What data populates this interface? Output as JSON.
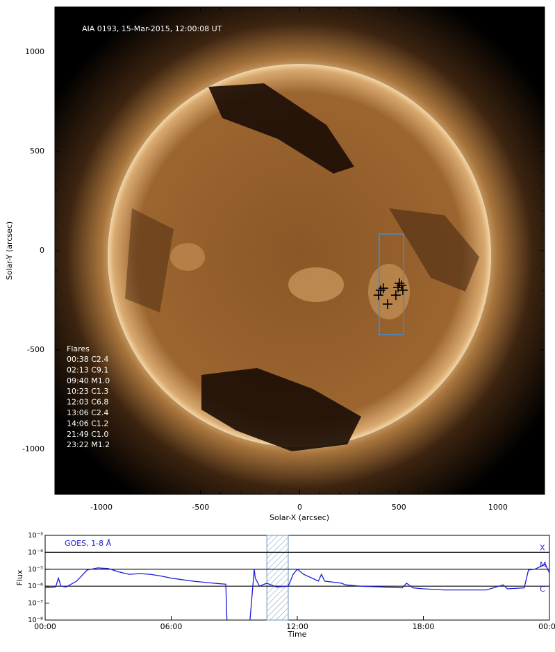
{
  "chart_data": [
    {
      "type": "scatter",
      "title": "AIA 0193, 15-Mar-2015, 12:00:08 UT",
      "xlabel": "Solar-X (arcsec)",
      "ylabel": "Solar-Y (arcsec)",
      "xlim": [
        -1235,
        1235
      ],
      "ylim": [
        -1227,
        1227
      ],
      "xticks": [
        -1000,
        -500,
        0,
        500,
        1000
      ],
      "yticks": [
        -1000,
        -500,
        0,
        500,
        1000
      ],
      "box": {
        "x": [
          401,
          524
        ],
        "y": [
          -423,
          84
        ],
        "color": "#3a8fd9"
      },
      "x": [
        397,
        422,
        443,
        485,
        496,
        513,
        520,
        503,
        408
      ],
      "y": [
        -224,
        -189,
        -269,
        -224,
        -185,
        -175,
        -199,
        -164,
        -199
      ],
      "color": "#000000",
      "flares_title": "Flares",
      "flares": [
        "00:38 C2.4",
        "02:13 C9.1",
        "09:40 M1.0",
        "10:23 C1.3",
        "12:03 C6.8",
        "13:06 C2.4",
        "14:06 C1.2",
        "21:49 C1.0",
        "23:22 M1.2"
      ]
    },
    {
      "type": "line",
      "xlabel": "Time",
      "ylabel": "Flux",
      "log_y": true,
      "xlim": [
        0,
        24
      ],
      "ylim": [
        1e-08,
        0.001
      ],
      "xticks": [
        {
          "value": 0,
          "label": "00:00"
        },
        {
          "value": 6,
          "label": "06:00"
        },
        {
          "value": 12,
          "label": "12:00"
        },
        {
          "value": 18,
          "label": "18:00"
        },
        {
          "value": 24,
          "label": "00:00"
        }
      ],
      "yticks": [
        {
          "value": 1e-08,
          "label": "10⁻⁸"
        },
        {
          "value": 1e-07,
          "label": "10⁻⁷"
        },
        {
          "value": 1e-06,
          "label": "10⁻⁶"
        },
        {
          "value": 1e-05,
          "label": "10⁻⁵"
        },
        {
          "value": 0.0001,
          "label": "10⁻⁴"
        },
        {
          "value": 0.001,
          "label": "10⁻³"
        }
      ],
      "class_levels": {
        "labels": [
          "X",
          "M",
          "C"
        ],
        "values": [
          0.0001,
          1e-05,
          1e-06
        ]
      },
      "shaded": [
        10.55,
        11.57
      ],
      "x": [
        0,
        0.5,
        0.63,
        0.75,
        1.0,
        1.5,
        2.0,
        2.5,
        3.0,
        3.5,
        4.0,
        4.5,
        5.0,
        5.5,
        6.0,
        7.0,
        8.0,
        8.6,
        8.65,
        null,
        9.75,
        9.95,
        10.0,
        10.2,
        10.55,
        11.0,
        11.57,
        11.8,
        12.0,
        12.3,
        13.0,
        13.15,
        13.3,
        14.1,
        14.3,
        15.0,
        16.0,
        17.0,
        17.2,
        17.5,
        18.0,
        19.0,
        20.0,
        21.0,
        21.8,
        22.0,
        22.8,
        23.0,
        23.3,
        23.6,
        23.8,
        24.0
      ],
      "series": [
        {
          "name": "GOES, 1-8 Å",
          "color": "#1a1ad8",
          "values": [
            8e-07,
            9e-07,
            3e-06,
            1e-06,
            9e-07,
            2e-06,
            9e-06,
            1.2e-05,
            1.1e-05,
            7e-06,
            5e-06,
            5.5e-06,
            5e-06,
            4e-06,
            3e-06,
            2e-06,
            1.5e-06,
            1.3e-06,
            1e-08,
            null,
            1e-08,
            1e-05,
            3e-06,
            1e-06,
            1.5e-06,
            9e-07,
            1e-06,
            5e-06,
            1e-05,
            5e-06,
            2e-06,
            5e-06,
            2e-06,
            1.5e-06,
            1.2e-06,
            1e-06,
            9e-07,
            8e-07,
            1.5e-06,
            8e-07,
            7e-07,
            6e-07,
            6e-07,
            6e-07,
            1.2e-06,
            7e-07,
            8e-07,
            9e-06,
            1e-05,
            1.5e-05,
            2e-05,
            6e-06
          ]
        }
      ]
    }
  ]
}
